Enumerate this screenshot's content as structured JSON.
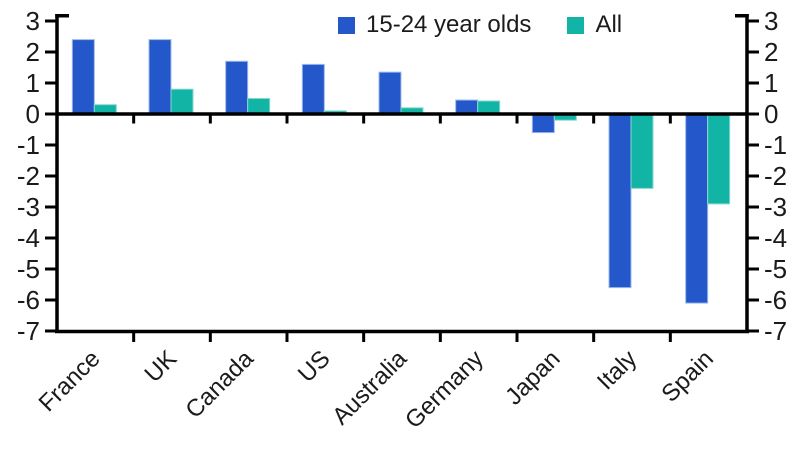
{
  "chart_data": {
    "type": "bar",
    "title": "",
    "xlabel": "",
    "ylabel": "",
    "categories": [
      "France",
      "UK",
      "Canada",
      "US",
      "Australia",
      "Germany",
      "Japan",
      "Italy",
      "Spain"
    ],
    "series": [
      {
        "name": "15-24 year olds",
        "color": "#2457c9",
        "edge_color": "#9db9ec",
        "values": [
          2.4,
          2.4,
          1.7,
          1.6,
          1.35,
          0.45,
          -0.6,
          -5.6,
          -6.1
        ]
      },
      {
        "name": "All",
        "color": "#12b5a5",
        "edge_color": "#86d9ce",
        "values": [
          0.3,
          0.8,
          0.5,
          0.1,
          0.2,
          0.42,
          -0.2,
          -2.4,
          -2.9
        ]
      }
    ],
    "yticks": [
      3,
      2,
      1,
      0,
      -1,
      -2,
      -3,
      -4,
      -5,
      -6,
      -7
    ],
    "ylim": [
      -7,
      3
    ],
    "dual_axis": true,
    "grid": false,
    "legend_position": "top-center",
    "axis_color": "#000000",
    "label_color": "#1a1a1a"
  }
}
